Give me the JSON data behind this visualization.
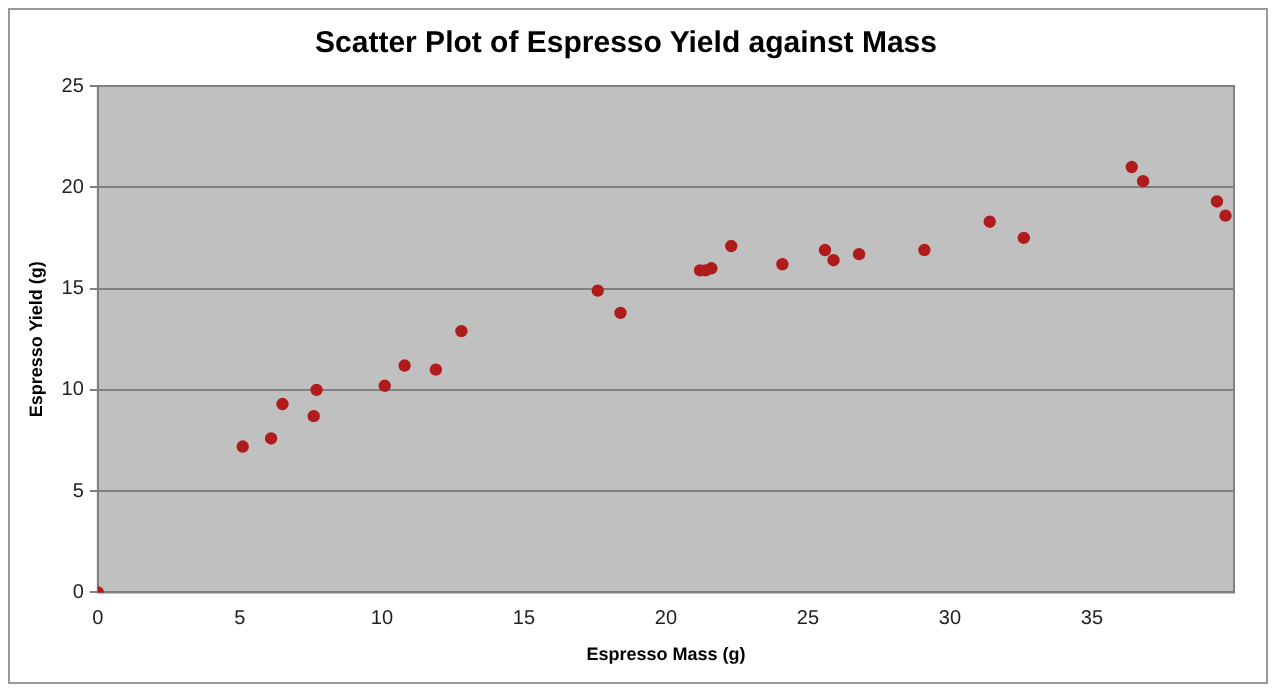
{
  "chart_data": {
    "type": "scatter",
    "title": "Scatter Plot of Espresso Yield against Mass",
    "xlabel": "Espresso Mass (g)",
    "ylabel": "Espresso Yield (g)",
    "series": [
      {
        "color": "#b01c1c",
        "x": [
          0,
          5.1,
          6.1,
          6.5,
          7.6,
          7.7,
          10.1,
          10.8,
          11.9,
          12.8,
          17.6,
          18.4,
          21.2,
          21.4,
          21.6,
          22.3,
          24.1,
          25.6,
          25.9,
          26.8,
          29.1,
          31.4,
          32.6,
          36.4,
          36.8,
          39.4,
          39.7
        ],
        "values": [
          0,
          7.2,
          7.6,
          9.3,
          8.7,
          10,
          10.2,
          11.2,
          11,
          12.9,
          14.9,
          13.8,
          15.9,
          15.9,
          16,
          17.1,
          16.2,
          16.9,
          16.4,
          16.7,
          16.9,
          18.3,
          17.5,
          21,
          20.3,
          19.3,
          18.6
        ]
      }
    ],
    "xlim": [
      0,
      40
    ],
    "xticks": [
      0,
      5,
      10,
      15,
      20,
      25,
      30,
      35
    ],
    "ylim": [
      0,
      25
    ],
    "yticks": [
      0,
      5,
      10,
      15,
      20,
      25
    ],
    "grid": "y",
    "legend": false,
    "marker": "circle"
  }
}
